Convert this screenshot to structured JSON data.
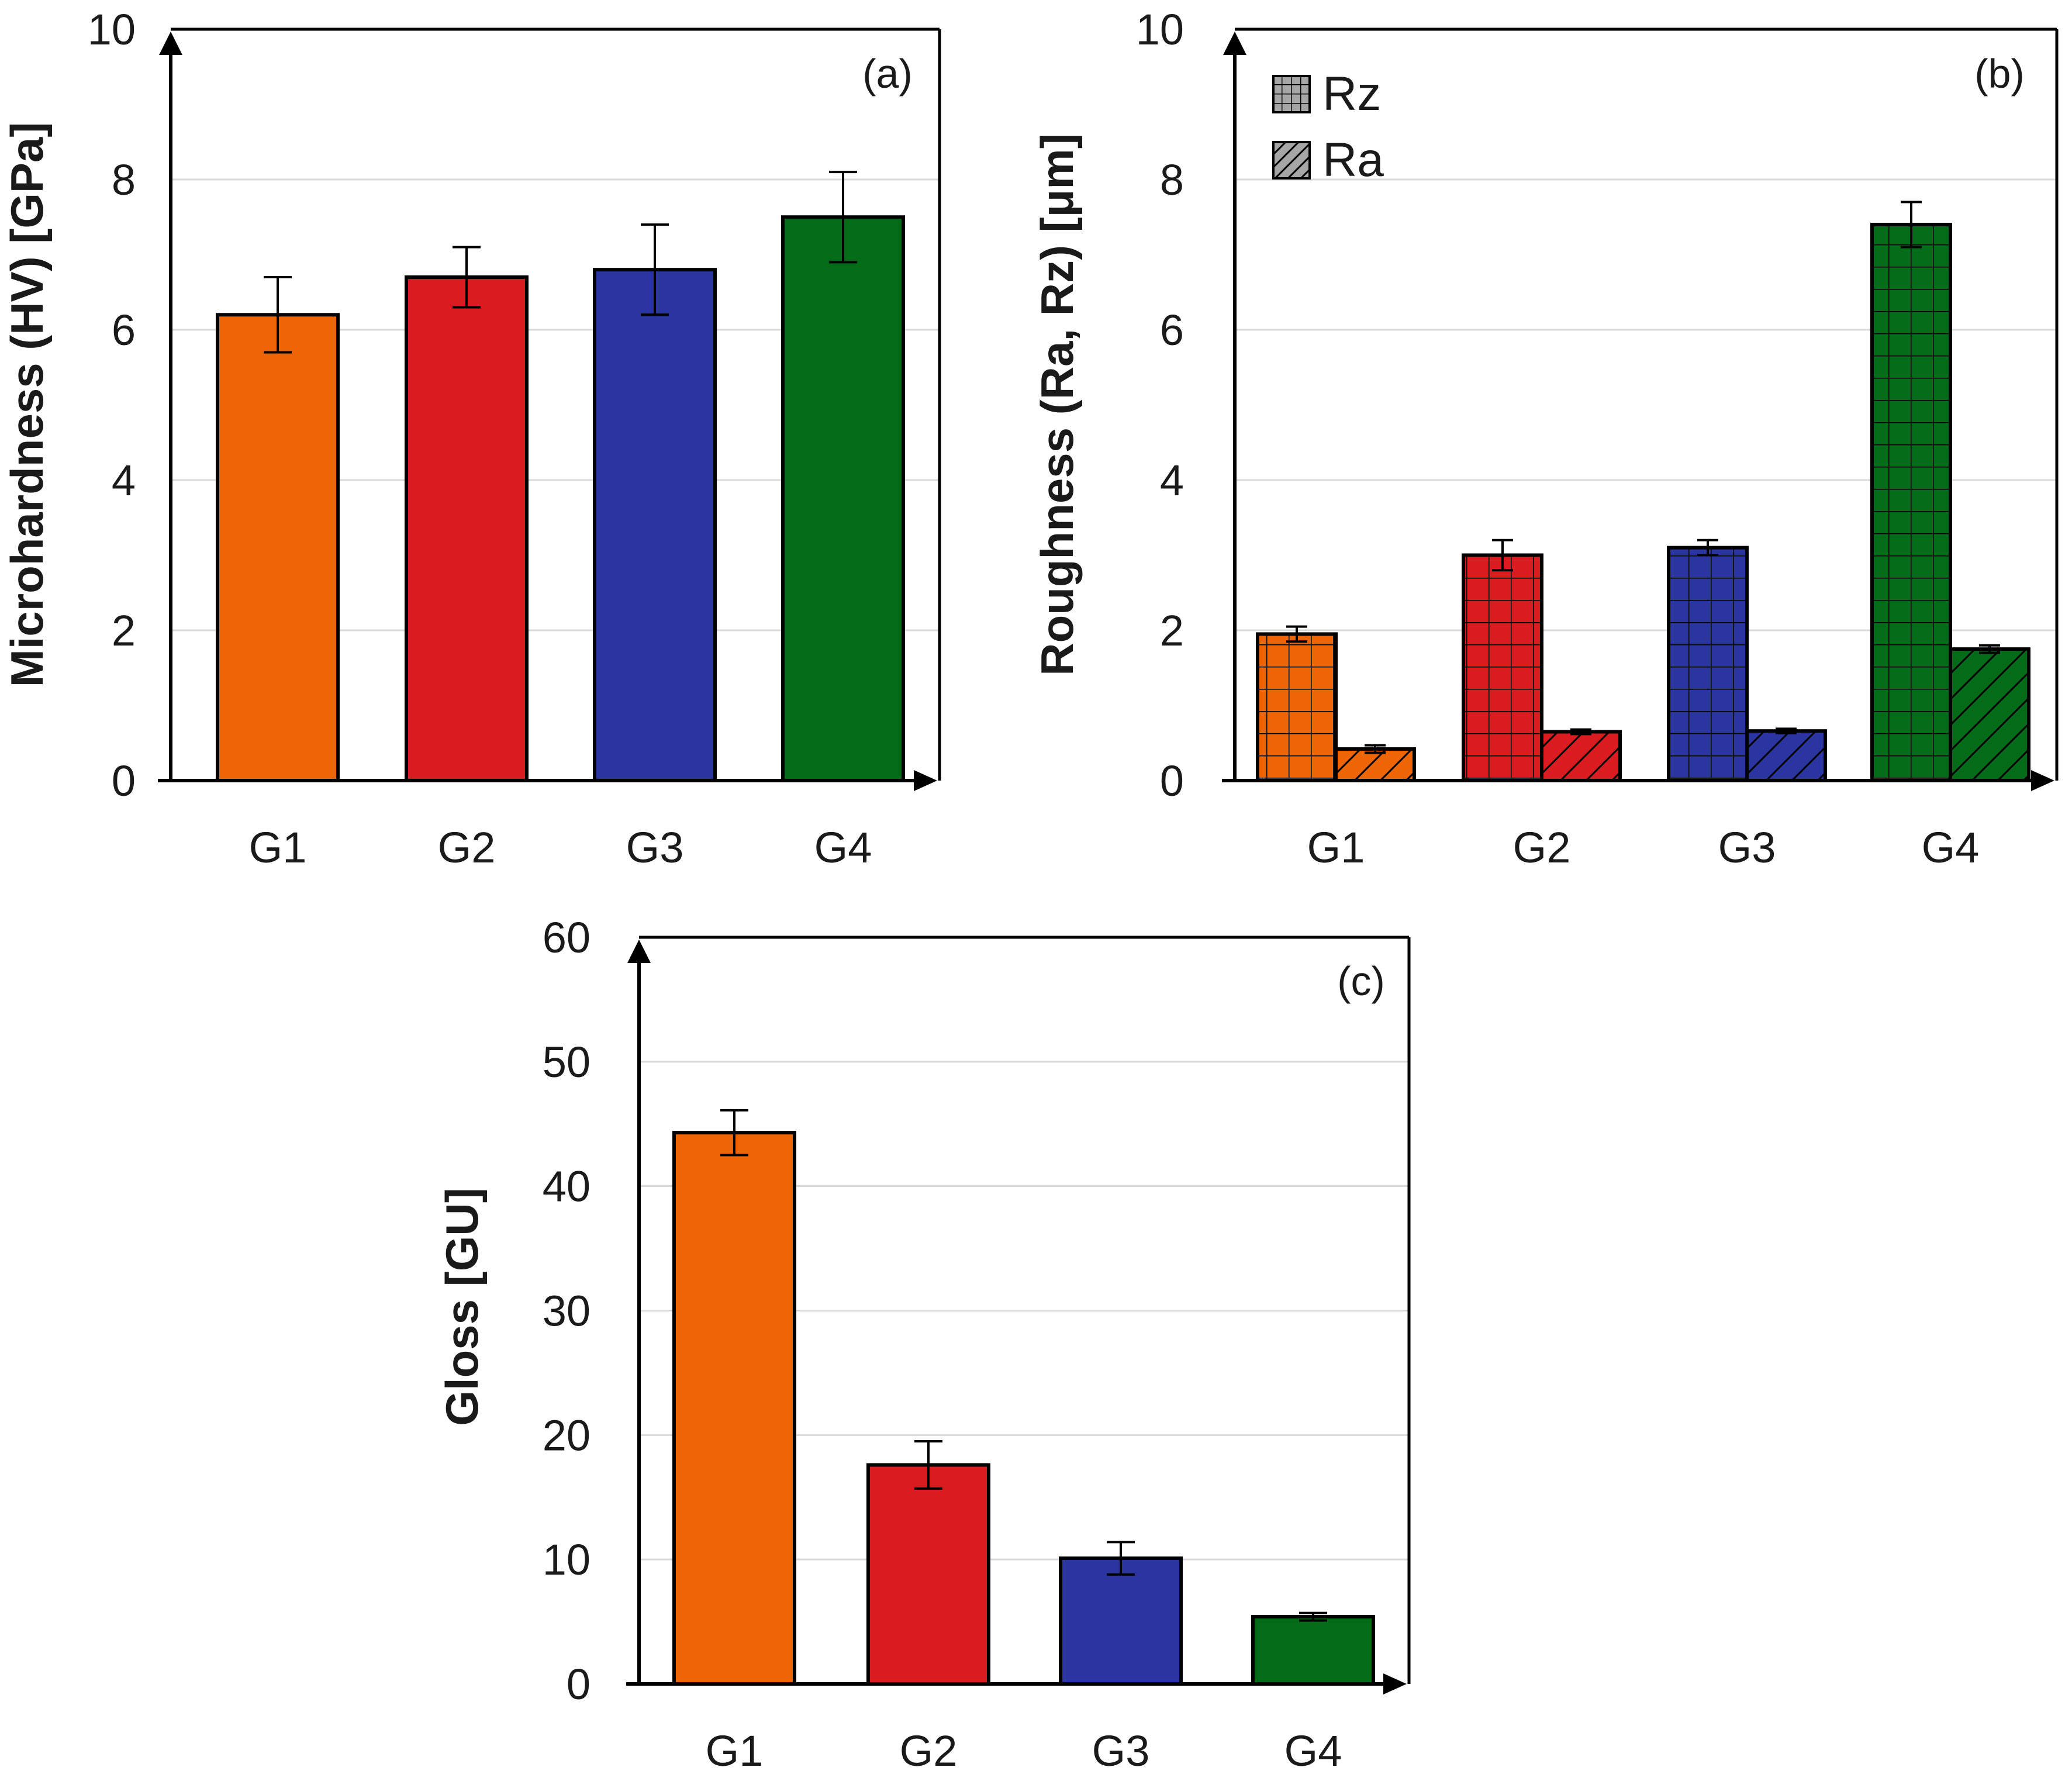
{
  "colors": {
    "G1": "#ED6504",
    "G2": "#DA1B1F",
    "G3": "#2B35A0",
    "G4": "#046B18"
  },
  "chart_data": [
    {
      "id": "a",
      "type": "bar",
      "panel_label": "(a)",
      "categories": [
        "G1",
        "G2",
        "G3",
        "G4"
      ],
      "series": [
        {
          "values": [
            6.2,
            6.7,
            6.8,
            7.5
          ],
          "errors": [
            0.5,
            0.4,
            0.6,
            0.6
          ],
          "pattern": "solid"
        }
      ],
      "ylabel": "Microhardness (HV) [GPa]",
      "ylim": [
        0,
        10
      ],
      "yticks": [
        0,
        2,
        4,
        6,
        8,
        10
      ],
      "grid": true
    },
    {
      "id": "b",
      "type": "bar",
      "panel_label": "(b)",
      "categories": [
        "G1",
        "G2",
        "G3",
        "G4"
      ],
      "series": [
        {
          "name": "Rz",
          "values": [
            1.95,
            3.0,
            3.1,
            7.4
          ],
          "errors": [
            0.1,
            0.2,
            0.1,
            0.3
          ],
          "pattern": "grid"
        },
        {
          "name": "Ra",
          "values": [
            0.42,
            0.65,
            0.66,
            1.75
          ],
          "errors": [
            0.05,
            0.03,
            0.03,
            0.05
          ],
          "pattern": "hatch"
        }
      ],
      "ylabel": "Roughness (Ra, Rz) [μm]",
      "ylim": [
        0,
        10
      ],
      "yticks": [
        0,
        2,
        4,
        6,
        8,
        10
      ],
      "legend": "top-left",
      "grid": true
    },
    {
      "id": "c",
      "type": "bar",
      "panel_label": "(c)",
      "categories": [
        "G1",
        "G2",
        "G3",
        "G4"
      ],
      "series": [
        {
          "values": [
            44.3,
            17.6,
            10.1,
            5.4
          ],
          "errors": [
            1.8,
            1.9,
            1.3,
            0.3
          ],
          "pattern": "solid"
        }
      ],
      "ylabel": "Gloss [GU]",
      "ylim": [
        0,
        60
      ],
      "yticks": [
        0,
        10,
        20,
        30,
        40,
        50,
        60
      ],
      "grid": true
    }
  ]
}
